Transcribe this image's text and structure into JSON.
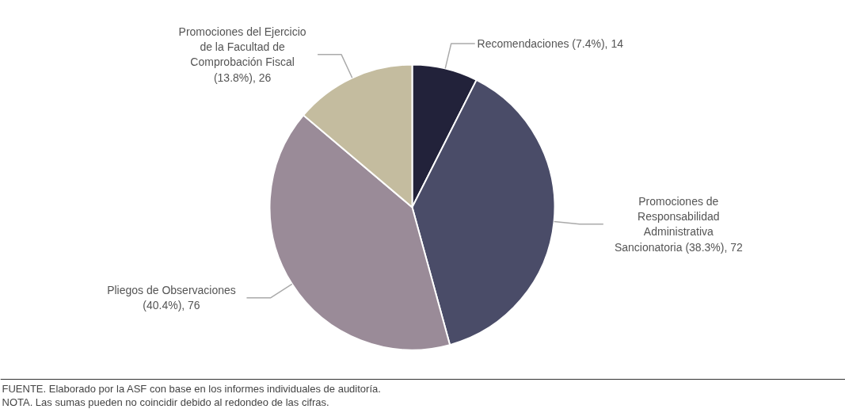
{
  "chart_data": {
    "type": "pie",
    "categories": [
      "Recomendaciones",
      "Promociones de Responsabilidad Administrativa Sancionatoria",
      "Pliegos de Observaciones",
      "Promociones del Ejercicio de la Facultad de Comprobación Fiscal"
    ],
    "values": [
      14,
      72,
      76,
      26
    ],
    "value_labels": [
      "(7.4%), 14",
      "(38.3%), 72",
      "(40.4%), 76",
      "(13.8%), 26"
    ],
    "colors": [
      "#22223a",
      "#4a4c68",
      "#9a8b98",
      "#c4bc9f"
    ],
    "annotations": [
      "FUENTE.      Elaborado por la ASF con base en los informes individuales de auditoría.",
      "NOTA.          Las sumas pueden no coincidir debido al redondeo de las cifras."
    ]
  }
}
